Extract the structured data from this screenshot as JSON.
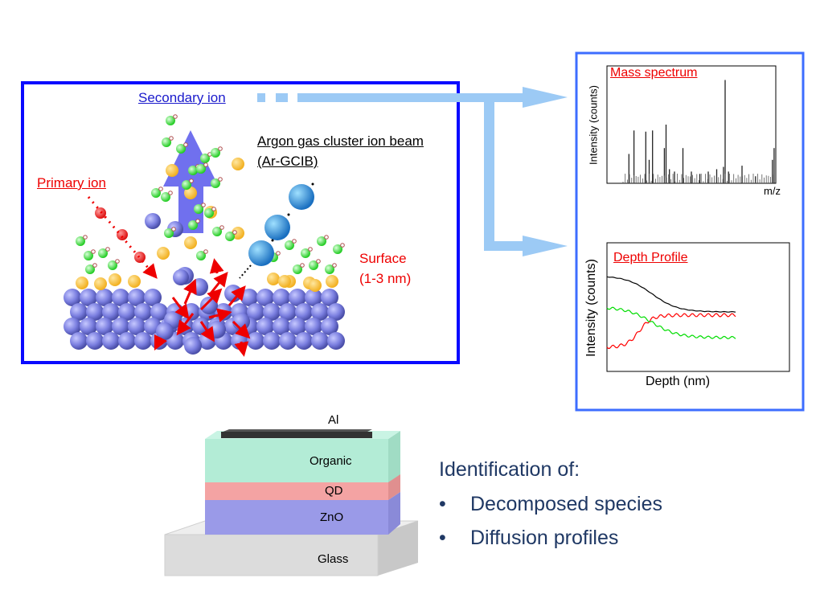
{
  "labels": {
    "secondary_ion": "Secondary ion",
    "primary_ion": "Primary ion",
    "argon_line1": "Argon gas cluster ion beam",
    "argon_line2": "(Ar-GCIB)",
    "surface_line1": "Surface",
    "surface_line2": "(1-3 nm)"
  },
  "mass_spectrum": {
    "title": "Mass spectrum",
    "ylabel": "Intensity  (counts)",
    "xlabel": "m/z",
    "peaks": [
      [
        0.13,
        0.25
      ],
      [
        0.16,
        0.45
      ],
      [
        0.23,
        0.44
      ],
      [
        0.25,
        0.2
      ],
      [
        0.27,
        0.45
      ],
      [
        0.34,
        0.3
      ],
      [
        0.35,
        0.5
      ],
      [
        0.37,
        0.12
      ],
      [
        0.4,
        0.1
      ],
      [
        0.45,
        0.3
      ],
      [
        0.5,
        0.1
      ],
      [
        0.55,
        0.08
      ],
      [
        0.6,
        0.1
      ],
      [
        0.65,
        0.12
      ],
      [
        0.69,
        0.14
      ],
      [
        0.7,
        0.88
      ],
      [
        0.72,
        0.1
      ],
      [
        0.8,
        0.15
      ],
      [
        0.88,
        0.06
      ],
      [
        0.98,
        0.2
      ],
      [
        0.99,
        0.3
      ]
    ],
    "color": "#222222"
  },
  "depth_profile": {
    "title": "Depth Profile",
    "ylabel": "Intensity (counts)",
    "xlabel": "Depth (nm)",
    "series": [
      {
        "color": "#000000"
      },
      {
        "color": "#ff0000"
      },
      {
        "color": "#00dd00"
      }
    ]
  },
  "device": {
    "layers": [
      {
        "name": "Al",
        "color": "#333333"
      },
      {
        "name": "Organic",
        "color": "#b3ecd6"
      },
      {
        "name": "QD",
        "color": "#f4a3a3"
      },
      {
        "name": "ZnO",
        "color": "#9a9ae8"
      },
      {
        "name": "Glass",
        "color": "#dcdcdc"
      }
    ]
  },
  "identification": {
    "heading": "Identification of:",
    "items": [
      "Decomposed species",
      "Diffusion profiles"
    ]
  },
  "colors": {
    "box_border": "#0a0aff",
    "right_box_border": "#3d6dff",
    "arrow": "#9ccaf5",
    "secondary": "#1a1acc",
    "red": "#ee0000"
  }
}
